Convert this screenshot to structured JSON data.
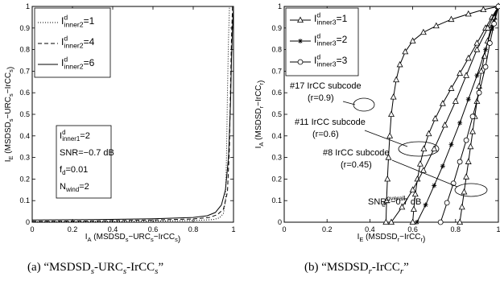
{
  "chart_data": [
    {
      "type": "line",
      "id": "a",
      "xlim": [
        0,
        1
      ],
      "ylim": [
        0,
        1
      ],
      "xticks": [
        "0",
        "0.2",
        "0.4",
        "0.6",
        "0.8",
        "1"
      ],
      "yticks": [
        "0",
        "0.1",
        "0.2",
        "0.3",
        "0.4",
        "0.5",
        "0.6",
        "0.7",
        "0.8",
        "0.9",
        "1"
      ],
      "xlabel": {
        "main": "I",
        "sub": "A",
        "rest": " (MSDSD",
        "sub2": "s",
        "rest2": "−URC",
        "sub3": "s",
        "rest3": "−IrCC",
        "sub4": "s",
        "end": ")"
      },
      "ylabel": {
        "main": "I",
        "sub": "E",
        "rest": " (MSDSD",
        "sub2": "s",
        "rest2": "−URC",
        "sub3": "s",
        "rest3": "−IrCC",
        "sub4": "s",
        "end": ")"
      },
      "legend": [
        {
          "label_base": "I",
          "sup": "d",
          "sub": "inner2",
          "value": "=1",
          "style": "dotted"
        },
        {
          "label_base": "I",
          "sup": "d",
          "sub": "inner2",
          "value": "=4",
          "style": "dashed"
        },
        {
          "label_base": "I",
          "sup": "d",
          "sub": "inner2",
          "value": "=6",
          "style": "solid"
        }
      ],
      "params": [
        {
          "base": "I",
          "sup": "d",
          "sub": "inner1",
          "value": "=2"
        },
        {
          "base": "SNR=−0.7 dB",
          "sup": "",
          "sub": "",
          "value": ""
        },
        {
          "base": "f",
          "sup": "",
          "sub": "d",
          "value": "=0.01"
        },
        {
          "base": "N",
          "sup": "",
          "sub": "wind",
          "value": "=2"
        }
      ],
      "series": [
        {
          "style": "dotted",
          "x": [
            0,
            0.3,
            0.6,
            0.8,
            0.9,
            0.93,
            0.95,
            0.96,
            0.965,
            0.97,
            0.975,
            0.98
          ],
          "y": [
            0.002,
            0.003,
            0.005,
            0.008,
            0.012,
            0.02,
            0.04,
            0.1,
            0.3,
            0.6,
            0.85,
            1.0
          ]
        },
        {
          "style": "dashed",
          "x": [
            0,
            0.3,
            0.6,
            0.8,
            0.88,
            0.92,
            0.95,
            0.97,
            0.98,
            0.985,
            0.99,
            0.995
          ],
          "y": [
            0.004,
            0.006,
            0.01,
            0.015,
            0.022,
            0.035,
            0.06,
            0.14,
            0.35,
            0.62,
            0.85,
            1.0
          ]
        },
        {
          "style": "solid",
          "x": [
            0,
            0.3,
            0.6,
            0.8,
            0.87,
            0.91,
            0.94,
            0.96,
            0.975,
            0.985,
            0.99,
            0.995,
            1.0
          ],
          "y": [
            0.01,
            0.012,
            0.016,
            0.022,
            0.03,
            0.045,
            0.08,
            0.15,
            0.3,
            0.55,
            0.75,
            0.9,
            1.0
          ]
        }
      ],
      "caption": "(a) “MSDSDs-URCs-IrCCs”"
    },
    {
      "type": "line",
      "id": "b",
      "xlim": [
        0,
        1
      ],
      "ylim": [
        0,
        1
      ],
      "xticks": [
        "0",
        "0.2",
        "0.4",
        "0.6",
        "0.8",
        "1"
      ],
      "yticks": [
        "0",
        "0.1",
        "0.2",
        "0.3",
        "0.4",
        "0.5",
        "0.6",
        "0.7",
        "0.8",
        "0.9",
        "1"
      ],
      "xlabel": {
        "main": "I",
        "sub": "E",
        "rest": " (MSDSD",
        "sub2": "r",
        "rest2": "−IrCC",
        "sub3": "r",
        "end": ")"
      },
      "ylabel": {
        "main": "I",
        "sub": "A",
        "rest": " (MSDSD",
        "sub2": "r",
        "rest2": "−IrCC",
        "sub3": "r",
        "end": ")"
      },
      "legend": [
        {
          "label_base": "I",
          "sup": "d",
          "sub": "inner3",
          "value": "=1",
          "marker": "triangle"
        },
        {
          "label_base": "I",
          "sup": "d",
          "sub": "inner3",
          "value": "=2",
          "marker": "star"
        },
        {
          "label_base": "I",
          "sup": "d",
          "sub": "inner3",
          "value": "=3",
          "marker": "circle"
        }
      ],
      "annotations": [
        {
          "lines": [
            "#17 IrCC subcode",
            "(r=0.9)"
          ]
        },
        {
          "lines": [
            "#11 IrCC subcode",
            "(r=0.6)"
          ]
        },
        {
          "lines": [
            "#8 IrCC subcode",
            "(r=0.45)"
          ]
        },
        {
          "base": "SNR",
          "sub": "e",
          "sup": "overall",
          "value": "=−0.7 dB"
        }
      ],
      "outer_curves": [
        {
          "subcode": "#17",
          "x": [
            0.475,
            0.478,
            0.482,
            0.487,
            0.493,
            0.5,
            0.51,
            0.523,
            0.54,
            0.565,
            0.6,
            0.65,
            0.71,
            0.78,
            0.86,
            0.93,
            1.0
          ],
          "y": [
            0.0,
            0.1,
            0.2,
            0.3,
            0.4,
            0.5,
            0.58,
            0.66,
            0.73,
            0.79,
            0.84,
            0.88,
            0.91,
            0.94,
            0.965,
            0.985,
            1.0
          ]
        },
        {
          "subcode": "#11",
          "x": [
            0.6,
            0.605,
            0.612,
            0.622,
            0.635,
            0.652,
            0.675,
            0.705,
            0.74,
            0.78,
            0.82,
            0.86,
            0.9,
            0.94,
            0.97,
            1.0
          ],
          "y": [
            0.0,
            0.06,
            0.13,
            0.2,
            0.27,
            0.34,
            0.41,
            0.48,
            0.55,
            0.62,
            0.69,
            0.76,
            0.83,
            0.9,
            0.95,
            1.0
          ]
        },
        {
          "subcode": "#8",
          "x": [
            0.82,
            0.83,
            0.84,
            0.85,
            0.86,
            0.87,
            0.88,
            0.89,
            0.9,
            0.91,
            0.92,
            0.935,
            0.95,
            0.965,
            0.98,
            1.0
          ],
          "y": [
            0.0,
            0.07,
            0.14,
            0.21,
            0.28,
            0.35,
            0.42,
            0.49,
            0.56,
            0.63,
            0.7,
            0.77,
            0.84,
            0.9,
            0.95,
            1.0
          ]
        }
      ],
      "inner_curves": [
        {
          "marker": "triangle",
          "x": [
            0.5,
            0.55,
            0.6,
            0.65,
            0.7,
            0.75,
            0.8,
            0.85,
            0.9,
            0.95,
            1.0
          ],
          "y": [
            0.0,
            0.07,
            0.15,
            0.24,
            0.34,
            0.45,
            0.56,
            0.68,
            0.8,
            0.9,
            1.0
          ]
        },
        {
          "marker": "star",
          "x": [
            0.62,
            0.66,
            0.7,
            0.74,
            0.78,
            0.82,
            0.86,
            0.9,
            0.94,
            0.97,
            1.0
          ],
          "y": [
            0.0,
            0.08,
            0.17,
            0.26,
            0.36,
            0.46,
            0.57,
            0.68,
            0.8,
            0.9,
            1.0
          ]
        },
        {
          "marker": "circle",
          "x": [
            0.73,
            0.76,
            0.79,
            0.82,
            0.85,
            0.88,
            0.91,
            0.94,
            0.96,
            0.98,
            1.0
          ],
          "y": [
            0.0,
            0.09,
            0.18,
            0.28,
            0.38,
            0.49,
            0.6,
            0.72,
            0.83,
            0.92,
            1.0
          ]
        }
      ],
      "caption": "(b) “MSDSDr-IrCCr”"
    }
  ]
}
